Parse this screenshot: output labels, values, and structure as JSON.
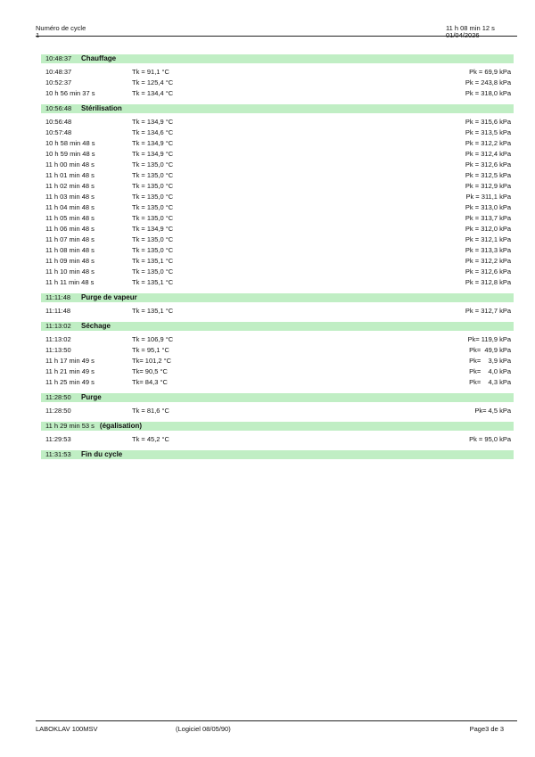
{
  "header": {
    "label": "Numéro de cycle",
    "cycle_number": "1",
    "time": "11 h 08 min 12 s",
    "date": "01/04/2026"
  },
  "sections": [
    {
      "time": "10:48:37",
      "title": "Chauffage",
      "rows": [
        [
          "10:48:37",
          "Tk = 91,1 °C",
          "Pk = 69,9 kPa"
        ],
        [
          "10:52:37",
          "Tk = 125,4 °C",
          "Pk = 243,8 kPa"
        ],
        [
          "10 h 56 min 37 s",
          "Tk = 134,4 °C",
          "Pk = 318,0 kPa"
        ]
      ]
    },
    {
      "time": "10:56:48",
      "title": "Stérilisation",
      "rows": [
        [
          "10:56:48",
          "Tk = 134,9 °C",
          "Pk = 315,6 kPa"
        ],
        [
          "10:57:48",
          "Tk = 134,6 °C",
          "Pk = 313,5 kPa"
        ],
        [
          "10 h 58 min 48 s",
          "Tk = 134,9 °C",
          "Pk = 312,2 kPa"
        ],
        [
          "10 h 59 min 48 s",
          "Tk = 134,9 °C",
          "Pk = 312,4 kPa"
        ],
        [
          "11 h 00 min 48 s",
          "Tk = 135,0 °C",
          "Pk = 312,6 kPa"
        ],
        [
          "11 h 01 min 48 s",
          "Tk = 135,0 °C",
          "Pk = 312,5 kPa"
        ],
        [
          "11 h 02 min 48 s",
          "Tk = 135,0 °C",
          "Pk = 312,9 kPa"
        ],
        [
          "11 h 03 min 48 s",
          "Tk = 135,0 °C",
          "Pk = 311,1 kPa"
        ],
        [
          "11 h 04 min 48 s",
          "Tk = 135,0 °C",
          "Pk = 313,0 kPa"
        ],
        [
          "11 h 05 min 48 s",
          "Tk = 135,0 °C",
          "Pk = 313,7 kPa"
        ],
        [
          "11 h 06 min 48 s",
          "Tk = 134,9 °C",
          "Pk = 312,0 kPa"
        ],
        [
          "11 h 07 min 48 s",
          "Tk = 135,0 °C",
          "Pk = 312,1 kPa"
        ],
        [
          "11 h 08 min 48 s",
          "Tk = 135,0 °C",
          "Pk = 313,3 kPa"
        ],
        [
          "11 h 09 min 48 s",
          "Tk = 135,1 °C",
          "Pk = 312,2 kPa"
        ],
        [
          "11 h 10 min 48 s",
          "Tk = 135,0 °C",
          "Pk = 312,6 kPa"
        ],
        [
          "11 h 11 min 48 s",
          "Tk = 135,1 °C",
          "Pk = 312,8 kPa"
        ]
      ]
    },
    {
      "time": "11:11:48",
      "title": "Purge de vapeur",
      "rows": [
        [
          "11:11:48",
          "Tk = 135,1 °C",
          "Pk = 312,7 kPa"
        ]
      ]
    },
    {
      "time": "11:13:02",
      "title": "Séchage",
      "rows": [
        [
          "11:13:02",
          "Tk = 106,9 °C",
          "Pk= 119,9 kPa"
        ],
        [
          "11:13:50",
          "Tk = 95,1 °C",
          "Pk=  49,9 kPa"
        ],
        [
          "11 h 17 min 49 s",
          "Tk= 101,2 °C",
          "Pk=    3,9 kPa"
        ],
        [
          "11 h 21 min 49 s",
          "Tk= 90,5 °C",
          "Pk=    4,0 kPa"
        ],
        [
          "11 h 25 min 49 s",
          "Tk= 84,3 °C",
          "Pk=    4,3 kPa"
        ]
      ]
    },
    {
      "time": "11:28:50",
      "title": "Purge",
      "rows": [
        [
          "11:28:50",
          "Tk = 81,6 °C",
          "Pk= 4,5 kPa"
        ]
      ]
    },
    {
      "time": "11 h 29 min 53 s",
      "title": "(égalisation)",
      "rows": [
        [
          "11:29:53",
          "Tk = 45,2 °C",
          "Pk = 95,0 kPa"
        ]
      ]
    },
    {
      "time": "11:31:53",
      "title": "Fin du cycle",
      "rows": []
    }
  ],
  "footer": {
    "device": "LABOKLAV 100MSV",
    "software": "(Logiciel 08/05/90)",
    "page": "Page3 de 3"
  },
  "colors": {
    "section_bar": "#c0eec4"
  }
}
